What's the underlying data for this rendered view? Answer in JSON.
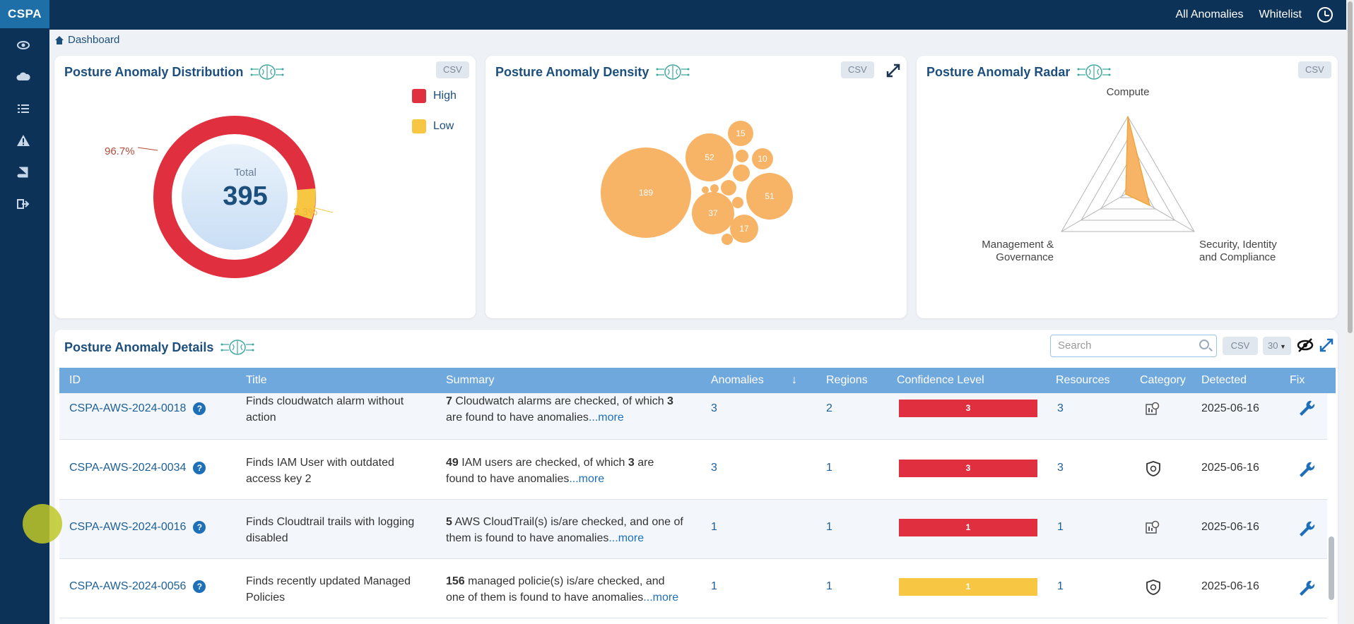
{
  "app": {
    "brand": "CSPA"
  },
  "topnav": {
    "all_anomalies": "All Anomalies",
    "whitelist": "Whitelist"
  },
  "sidebar": {
    "icons": [
      "eye-icon",
      "cloud-icon",
      "list-icon",
      "warning-icon",
      "book-icon",
      "sign-out-icon"
    ]
  },
  "breadcrumb": {
    "label": "Dashboard"
  },
  "distribution": {
    "title": "Posture Anomaly Distribution",
    "csv": "CSV",
    "total_label": "Total",
    "total_value": "395",
    "high_pct": "96.7%",
    "low_pct": "3.3%",
    "legend": [
      {
        "label": "High",
        "color": "#e0303f"
      },
      {
        "label": "Low",
        "color": "#f7c744"
      }
    ]
  },
  "density": {
    "title": "Posture Anomaly Density",
    "csv": "CSV",
    "bubble_labels": [
      "189",
      "52",
      "15",
      "10",
      "51",
      "37",
      "17"
    ]
  },
  "radar": {
    "title": "Posture Anomaly Radar",
    "csv": "CSV",
    "axes": [
      "Compute",
      "Management &",
      "Governance",
      "Security, Identity",
      "and Compliance"
    ]
  },
  "details": {
    "title": "Posture Anomaly Details",
    "search_placeholder": "Search",
    "csv": "CSV",
    "page_size": "30",
    "columns": [
      "ID",
      "Title",
      "Summary",
      "Anomalies",
      "Regions",
      "Confidence Level",
      "Resources",
      "Category",
      "Detected",
      "Fix"
    ],
    "rows": [
      {
        "id": "CSPA-AWS-2024-0018",
        "title1": "Finds cloudwatch alarm without",
        "title2": "action",
        "sum_count": "7",
        "sum_a": " Cloudwatch alarms are checked, of which ",
        "sum_b_bold": "3",
        "sum_c": "are found to have anomalies",
        "more": "...more",
        "anomalies": "3",
        "regions": "2",
        "confidence": "3",
        "confidence_color": "#e0303f",
        "resources": "3",
        "category_icon": "compute-icon",
        "detected": "2025-06-16"
      },
      {
        "id": "CSPA-AWS-2024-0034",
        "title1": "Finds IAM User with outdated",
        "title2": "access key 2",
        "sum_count": "49",
        "sum_a": " IAM users are checked, of which ",
        "sum_b_bold": "3",
        "sum_b_tail": " are",
        "sum_c": "found to have anomalies",
        "more": "...more",
        "anomalies": "3",
        "regions": "1",
        "confidence": "3",
        "confidence_color": "#e0303f",
        "resources": "3",
        "category_icon": "shield-icon",
        "detected": "2025-06-16"
      },
      {
        "id": "CSPA-AWS-2024-0016",
        "title1": "Finds Cloudtrail trails with logging",
        "title2": "disabled",
        "sum_count": "5",
        "sum_a": " AWS CloudTrail(s) is/are checked, and one of",
        "sum_c": "them is found to have anomalies",
        "more": "...more",
        "anomalies": "1",
        "regions": "1",
        "confidence": "1",
        "confidence_color": "#e0303f",
        "resources": "1",
        "category_icon": "compute-icon",
        "detected": "2025-06-16"
      },
      {
        "id": "CSPA-AWS-2024-0056",
        "title1": "Finds recently updated Managed",
        "title2": "Policies",
        "sum_count": "156",
        "sum_a": " managed policie(s) is/are checked, and",
        "sum_c": "one of them is found to have anomalies",
        "more": "...more",
        "anomalies": "1",
        "regions": "1",
        "confidence": "1",
        "confidence_color": "#f7c744",
        "resources": "1",
        "category_icon": "shield-icon",
        "detected": "2025-06-16"
      }
    ]
  }
}
